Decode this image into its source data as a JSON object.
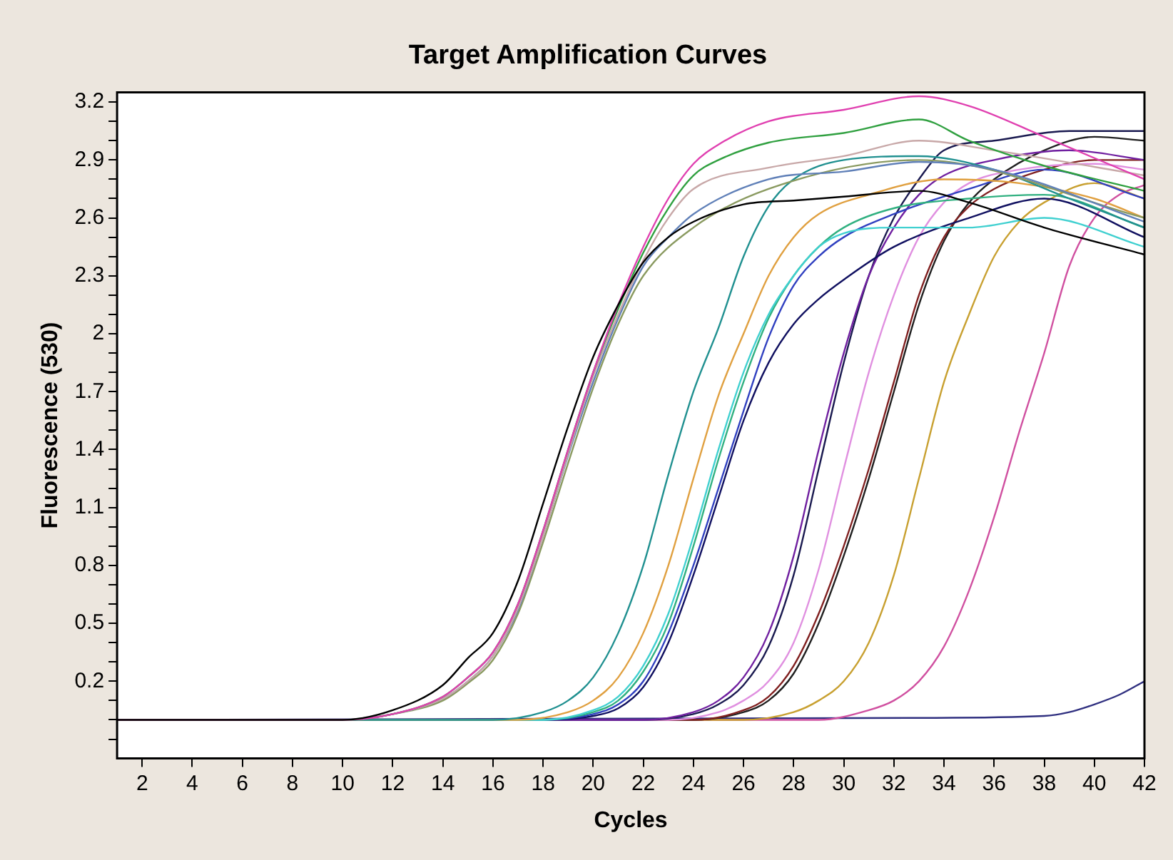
{
  "chart_data": {
    "type": "line",
    "title": "Target Amplification Curves",
    "xlabel": "Cycles",
    "ylabel": "Fluorescence (530)",
    "xlim": [
      1,
      42
    ],
    "xticks": [
      2,
      4,
      6,
      8,
      10,
      12,
      14,
      16,
      18,
      20,
      22,
      24,
      26,
      28,
      30,
      32,
      34,
      36,
      38,
      40,
      42
    ],
    "ylim": [
      -0.2,
      3.25
    ],
    "yticks": [
      {
        "value": -0.1,
        "label": null
      },
      {
        "value": 0,
        "label": null
      },
      {
        "value": 0.1,
        "label": null
      },
      0.2,
      {
        "value": 0.3,
        "label": null
      },
      {
        "value": 0.4,
        "label": null
      },
      0.5,
      {
        "value": 0.6,
        "label": null
      },
      {
        "value": 0.7,
        "label": null
      },
      0.8,
      {
        "value": 0.9,
        "label": null
      },
      {
        "value": 1.0,
        "label": null
      },
      1.1,
      {
        "value": 1.2,
        "label": null
      },
      {
        "value": 1.3,
        "label": null
      },
      1.4,
      {
        "value": 1.5,
        "label": null
      },
      {
        "value": 1.6,
        "label": null
      },
      1.7,
      {
        "value": 1.8,
        "label": null
      },
      {
        "value": 1.9,
        "label": null
      },
      2,
      {
        "value": 2.1,
        "label": null
      },
      {
        "value": 2.2,
        "label": null
      },
      2.3,
      {
        "value": 2.4,
        "label": null
      },
      {
        "value": 2.5,
        "label": null
      },
      2.6,
      {
        "value": 2.7,
        "label": null
      },
      {
        "value": 2.8,
        "label": null
      },
      2.9,
      {
        "value": 3.0,
        "label": null
      },
      {
        "value": 3.1,
        "label": null
      },
      3.2
    ],
    "grid": false,
    "legend": false,
    "series": [
      {
        "color": "#000000",
        "x": [
          1,
          10,
          12,
          14,
          15,
          16,
          17,
          18,
          19,
          20,
          21,
          22,
          23,
          24,
          26,
          28,
          30,
          33,
          35,
          38,
          42
        ],
        "values": [
          0,
          0,
          0.05,
          0.18,
          0.32,
          0.45,
          0.72,
          1.12,
          1.52,
          1.88,
          2.15,
          2.37,
          2.5,
          2.58,
          2.67,
          2.69,
          2.71,
          2.74,
          2.68,
          2.55,
          2.41
        ]
      },
      {
        "color": "#e040b0",
        "x": [
          1,
          10,
          12,
          14,
          15,
          16,
          17,
          18,
          19,
          20,
          21,
          22,
          23,
          24,
          25,
          27,
          30,
          33,
          35,
          38,
          42
        ],
        "values": [
          0,
          0,
          0.03,
          0.12,
          0.22,
          0.35,
          0.6,
          0.98,
          1.4,
          1.8,
          2.15,
          2.45,
          2.7,
          2.88,
          2.98,
          3.1,
          3.16,
          3.23,
          3.18,
          3.02,
          2.8
        ]
      },
      {
        "color": "#30a040",
        "x": [
          1,
          10,
          12,
          14,
          15,
          16,
          17,
          18,
          19,
          20,
          21,
          22,
          23,
          24,
          25,
          27,
          30,
          33,
          35,
          38,
          42
        ],
        "values": [
          0,
          0,
          0.03,
          0.12,
          0.22,
          0.35,
          0.6,
          0.98,
          1.4,
          1.8,
          2.13,
          2.42,
          2.65,
          2.82,
          2.9,
          2.99,
          3.04,
          3.11,
          3.0,
          2.87,
          2.74
        ]
      },
      {
        "color": "#c8a8a8",
        "x": [
          1,
          10,
          12,
          14,
          15,
          16,
          17,
          18,
          19,
          20,
          21,
          22,
          23,
          24,
          27,
          30,
          33,
          36,
          42
        ],
        "values": [
          0,
          0,
          0.03,
          0.11,
          0.2,
          0.33,
          0.58,
          0.95,
          1.38,
          1.78,
          2.1,
          2.38,
          2.6,
          2.75,
          2.86,
          2.92,
          3.0,
          2.95,
          2.82
        ]
      },
      {
        "color": "#6080b8",
        "x": [
          1,
          10,
          12,
          14,
          15,
          16,
          17,
          18,
          19,
          20,
          21,
          22,
          23,
          24,
          27,
          30,
          33,
          36,
          42
        ],
        "values": [
          0,
          0,
          0.03,
          0.11,
          0.2,
          0.33,
          0.57,
          0.95,
          1.37,
          1.75,
          2.08,
          2.35,
          2.5,
          2.62,
          2.8,
          2.84,
          2.89,
          2.85,
          2.58
        ]
      },
      {
        "color": "#8a9a60",
        "x": [
          1,
          10,
          12,
          14,
          15,
          16,
          17,
          18,
          19,
          20,
          21,
          22,
          24,
          27,
          33,
          42
        ],
        "values": [
          0,
          0,
          0.03,
          0.1,
          0.19,
          0.31,
          0.55,
          0.92,
          1.33,
          1.72,
          2.05,
          2.3,
          2.55,
          2.75,
          2.9,
          2.6
        ]
      },
      {
        "color": "#209090",
        "x": [
          1,
          16,
          18,
          19,
          20,
          21,
          22,
          23,
          24,
          25,
          26,
          27,
          28,
          30,
          33,
          36,
          39,
          42
        ],
        "values": [
          0,
          0,
          0.04,
          0.1,
          0.22,
          0.45,
          0.8,
          1.27,
          1.7,
          2.03,
          2.4,
          2.66,
          2.8,
          2.9,
          2.92,
          2.85,
          2.7,
          2.55
        ]
      },
      {
        "color": "#e0a040",
        "x": [
          1,
          17,
          19,
          20,
          21,
          22,
          23,
          24,
          25,
          26,
          27,
          28,
          29,
          31,
          34,
          37,
          40,
          42
        ],
        "values": [
          0,
          0,
          0.04,
          0.1,
          0.22,
          0.45,
          0.8,
          1.25,
          1.68,
          2.0,
          2.3,
          2.5,
          2.62,
          2.72,
          2.8,
          2.78,
          2.7,
          2.6
        ]
      },
      {
        "color": "#40d0d0",
        "x": [
          1,
          18,
          20,
          21,
          22,
          23,
          24,
          25,
          26,
          27,
          28,
          29,
          30,
          32,
          35,
          38,
          42
        ],
        "values": [
          0,
          0,
          0.05,
          0.12,
          0.28,
          0.55,
          0.95,
          1.4,
          1.8,
          2.1,
          2.3,
          2.45,
          2.52,
          2.55,
          2.55,
          2.6,
          2.45
        ]
      },
      {
        "color": "#30b080",
        "x": [
          1,
          18,
          20,
          21,
          22,
          23,
          24,
          25,
          26,
          27,
          28,
          29,
          30,
          32,
          35,
          38,
          42
        ],
        "values": [
          0,
          0,
          0.04,
          0.1,
          0.25,
          0.5,
          0.9,
          1.35,
          1.75,
          2.08,
          2.3,
          2.45,
          2.55,
          2.65,
          2.7,
          2.72,
          2.55
        ]
      },
      {
        "color": "#3040c0",
        "x": [
          1,
          18,
          20,
          21,
          22,
          23,
          24,
          25,
          26,
          27,
          28,
          29,
          30,
          32,
          35,
          38,
          42
        ],
        "values": [
          0,
          0,
          0.03,
          0.08,
          0.2,
          0.45,
          0.8,
          1.2,
          1.6,
          1.98,
          2.25,
          2.4,
          2.5,
          2.62,
          2.75,
          2.85,
          2.7
        ]
      },
      {
        "color": "#101060",
        "x": [
          1,
          18,
          20,
          21,
          22,
          23,
          24,
          25,
          26,
          27,
          28,
          29,
          30,
          32,
          35,
          38,
          42
        ],
        "values": [
          0,
          0,
          0.02,
          0.06,
          0.17,
          0.4,
          0.75,
          1.15,
          1.55,
          1.85,
          2.05,
          2.18,
          2.28,
          2.45,
          2.6,
          2.7,
          2.5
        ]
      },
      {
        "color": "#7020a0",
        "x": [
          1,
          22,
          24,
          25,
          26,
          27,
          28,
          29,
          30,
          31,
          32,
          33,
          34,
          36,
          39,
          42
        ],
        "values": [
          0,
          0,
          0.04,
          0.1,
          0.22,
          0.45,
          0.85,
          1.4,
          1.9,
          2.3,
          2.55,
          2.72,
          2.82,
          2.9,
          2.95,
          2.9
        ]
      },
      {
        "color": "#1a1a50",
        "x": [
          1,
          22,
          24,
          25,
          26,
          27,
          28,
          29,
          30,
          31,
          32,
          33,
          34,
          36,
          39,
          42
        ],
        "values": [
          0,
          0,
          0.03,
          0.08,
          0.18,
          0.38,
          0.75,
          1.3,
          1.85,
          2.3,
          2.6,
          2.8,
          2.95,
          3.0,
          3.05,
          3.05
        ]
      },
      {
        "color": "#e090e0",
        "x": [
          1,
          23,
          25,
          26,
          27,
          28,
          29,
          30,
          31,
          32,
          33,
          34,
          35,
          37,
          40,
          42
        ],
        "values": [
          0,
          0,
          0.04,
          0.1,
          0.2,
          0.4,
          0.78,
          1.3,
          1.8,
          2.2,
          2.5,
          2.68,
          2.78,
          2.85,
          2.88,
          2.85
        ]
      },
      {
        "color": "#802020",
        "x": [
          1,
          24,
          26,
          27,
          28,
          29,
          30,
          31,
          32,
          33,
          34,
          35,
          36,
          38,
          40,
          42
        ],
        "values": [
          0,
          0,
          0.05,
          0.12,
          0.28,
          0.55,
          0.9,
          1.3,
          1.75,
          2.2,
          2.5,
          2.66,
          2.75,
          2.85,
          2.9,
          2.9
        ]
      },
      {
        "color": "#202020",
        "x": [
          1,
          24,
          26,
          27,
          28,
          29,
          30,
          31,
          32,
          33,
          34,
          35,
          36,
          38,
          40,
          42
        ],
        "values": [
          0,
          0,
          0.04,
          0.1,
          0.24,
          0.5,
          0.85,
          1.25,
          1.7,
          2.15,
          2.48,
          2.68,
          2.8,
          2.95,
          3.02,
          3.0
        ]
      },
      {
        "color": "#c8a030",
        "x": [
          1,
          26,
          28,
          29,
          30,
          31,
          32,
          33,
          34,
          35,
          36,
          37,
          38,
          40,
          42
        ],
        "values": [
          0,
          0,
          0.04,
          0.1,
          0.2,
          0.4,
          0.75,
          1.25,
          1.75,
          2.1,
          2.4,
          2.58,
          2.68,
          2.78,
          2.7
        ]
      },
      {
        "color": "#d050a0",
        "x": [
          1,
          29,
          31,
          32,
          33,
          34,
          35,
          36,
          37,
          38,
          39,
          40,
          41,
          42
        ],
        "values": [
          0,
          0,
          0.05,
          0.1,
          0.2,
          0.38,
          0.67,
          1.05,
          1.49,
          1.9,
          2.35,
          2.6,
          2.72,
          2.77
        ]
      },
      {
        "color": "#303080",
        "x": [
          1,
          33,
          38,
          39,
          40,
          41,
          42
        ],
        "values": [
          0,
          0.01,
          0.02,
          0.04,
          0.08,
          0.13,
          0.2
        ]
      }
    ]
  }
}
